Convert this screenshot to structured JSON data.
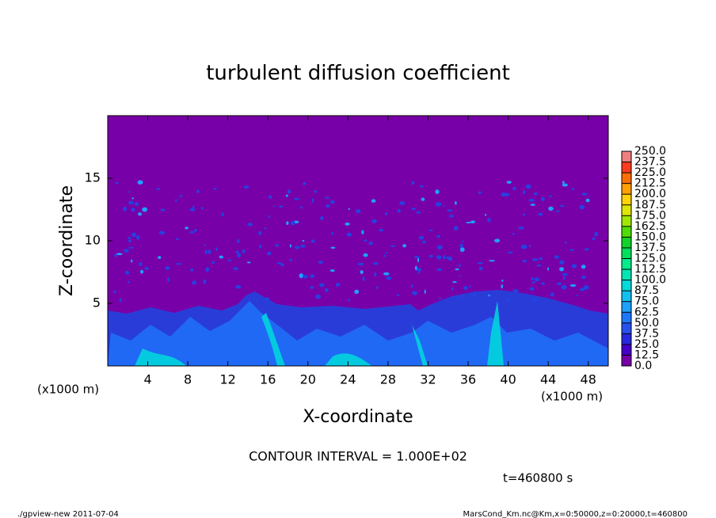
{
  "chart_data": {
    "type": "contour",
    "title": "turbulent diffusion coefficient",
    "x_label": "X-coordinate",
    "y_label": "Z-coordinate",
    "x_unit": "(x1000 m)",
    "y_unit": "(x1000 m)",
    "xlim": [
      0,
      50
    ],
    "xticks": [
      4,
      8,
      12,
      16,
      20,
      24,
      28,
      32,
      36,
      40,
      44,
      48
    ],
    "ylim": [
      0,
      20
    ],
    "yticks": [
      5,
      10,
      15
    ],
    "contour_interval": "CONTOUR INTERVAL = 1.000E+02",
    "time_label": "t=460800 s",
    "footer_left": "./gpview-new  2011-07-04",
    "footer_right": "MarsCond_Km.nc@Km,x=0:50000,z=0:20000,t=460800",
    "colorbar": {
      "levels": [
        {
          "value": 0,
          "label": "0.0"
        },
        12.5,
        {
          "value": 25,
          "label": "25.0"
        },
        37.5,
        {
          "value": 50,
          "label": "50.0"
        },
        62.5,
        {
          "value": 75,
          "label": "75.0"
        },
        87.5,
        {
          "value": 100,
          "label": "100.0"
        },
        112.5,
        {
          "value": 125,
          "label": "125.0"
        },
        137.5,
        {
          "value": 150,
          "label": "150.0"
        },
        162.5,
        {
          "value": 175,
          "label": "175.0"
        },
        187.5,
        {
          "value": 200,
          "label": "200.0"
        },
        212.5,
        {
          "value": 225,
          "label": "225.0"
        },
        237.5,
        {
          "value": 250,
          "label": "250.0"
        }
      ],
      "colors": [
        "#7800a8",
        "#4600c8",
        "#2828e0",
        "#2850f0",
        "#1e78ff",
        "#1ea0ff",
        "#10c0f0",
        "#00dcdc",
        "#00e6b4",
        "#00ec8c",
        "#00e05a",
        "#10d428",
        "#50dc00",
        "#a0e600",
        "#dce600",
        "#ffd200",
        "#ffa000",
        "#ff6e00",
        "#ff3c1e",
        "#f08080"
      ]
    }
  }
}
